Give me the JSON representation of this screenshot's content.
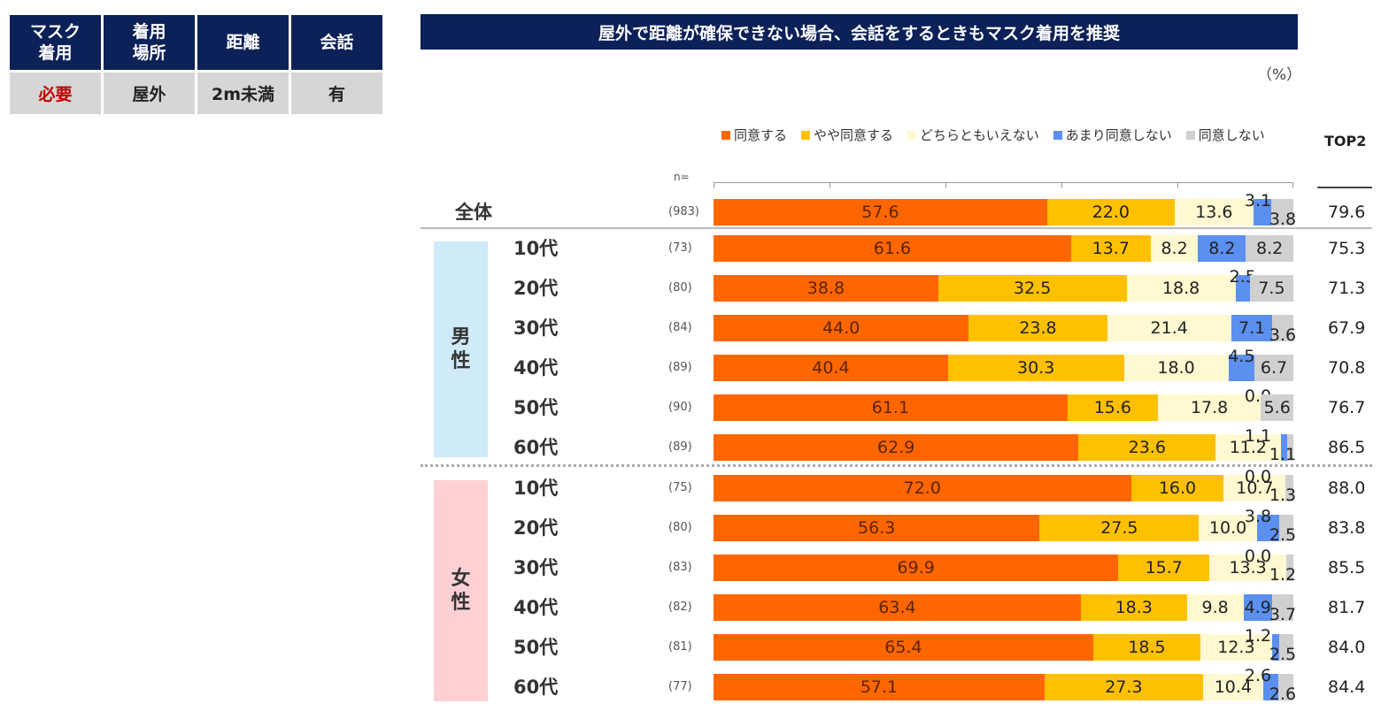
{
  "conditions": {
    "headers": [
      "マスク\n着用",
      "着用\n場所",
      "距離",
      "会話"
    ],
    "values": [
      "必要",
      "屋外",
      "2m未満",
      "有"
    ]
  },
  "title": "屋外で距離が確保できない場合、会話をするときもマスク着用を推奨",
  "unit": "（%）",
  "n_label": "n=",
  "top2_label": "TOP2",
  "groups": {
    "male": "男\n性",
    "female": "女\n性"
  },
  "colors": [
    "#ff6600",
    "#ffc000",
    "#fff8d0",
    "#5b8ff0",
    "#d0d0d0"
  ],
  "chart_data": {
    "type": "bar",
    "orientation": "horizontal-stacked-100",
    "title": "屋外で距離が確保できない場合、会話をするときもマスク着用を推奨",
    "series_names": [
      "同意する",
      "やや同意する",
      "どちらともいえない",
      "あまり同意しない",
      "同意しない"
    ],
    "rows": [
      {
        "label": "全体",
        "n": "(983)",
        "values": [
          57.6,
          22.0,
          13.6,
          3.1,
          3.8
        ],
        "top2": "79.6"
      },
      {
        "label": "10代",
        "group": "男性",
        "n": "(73)",
        "values": [
          61.6,
          13.7,
          8.2,
          8.2,
          8.2
        ],
        "top2": "75.3"
      },
      {
        "label": "20代",
        "group": "男性",
        "n": "(80)",
        "values": [
          38.8,
          32.5,
          18.8,
          2.5,
          7.5
        ],
        "top2": "71.3"
      },
      {
        "label": "30代",
        "group": "男性",
        "n": "(84)",
        "values": [
          44.0,
          23.8,
          21.4,
          7.1,
          3.6
        ],
        "top2": "67.9"
      },
      {
        "label": "40代",
        "group": "男性",
        "n": "(89)",
        "values": [
          40.4,
          30.3,
          18.0,
          4.5,
          6.7
        ],
        "top2": "70.8"
      },
      {
        "label": "50代",
        "group": "男性",
        "n": "(90)",
        "values": [
          61.1,
          15.6,
          17.8,
          0.0,
          5.6
        ],
        "top2": "76.7"
      },
      {
        "label": "60代",
        "group": "男性",
        "n": "(89)",
        "values": [
          62.9,
          23.6,
          11.2,
          1.1,
          1.1
        ],
        "top2": "86.5"
      },
      {
        "label": "10代",
        "group": "女性",
        "n": "(75)",
        "values": [
          72.0,
          16.0,
          10.7,
          0.0,
          1.3
        ],
        "top2": "88.0"
      },
      {
        "label": "20代",
        "group": "女性",
        "n": "(80)",
        "values": [
          56.3,
          27.5,
          10.0,
          3.8,
          2.5
        ],
        "top2": "83.8"
      },
      {
        "label": "30代",
        "group": "女性",
        "n": "(83)",
        "values": [
          69.9,
          15.7,
          13.3,
          0.0,
          1.2
        ],
        "top2": "85.5"
      },
      {
        "label": "40代",
        "group": "女性",
        "n": "(82)",
        "values": [
          63.4,
          18.3,
          9.8,
          4.9,
          3.7
        ],
        "top2": "81.7"
      },
      {
        "label": "50代",
        "group": "女性",
        "n": "(81)",
        "values": [
          65.4,
          18.5,
          12.3,
          1.2,
          2.5
        ],
        "top2": "84.0"
      },
      {
        "label": "60代",
        "group": "女性",
        "n": "(77)",
        "values": [
          57.1,
          27.3,
          10.4,
          2.6,
          2.6
        ],
        "top2": "84.4"
      }
    ],
    "xlim": [
      0,
      100
    ]
  }
}
